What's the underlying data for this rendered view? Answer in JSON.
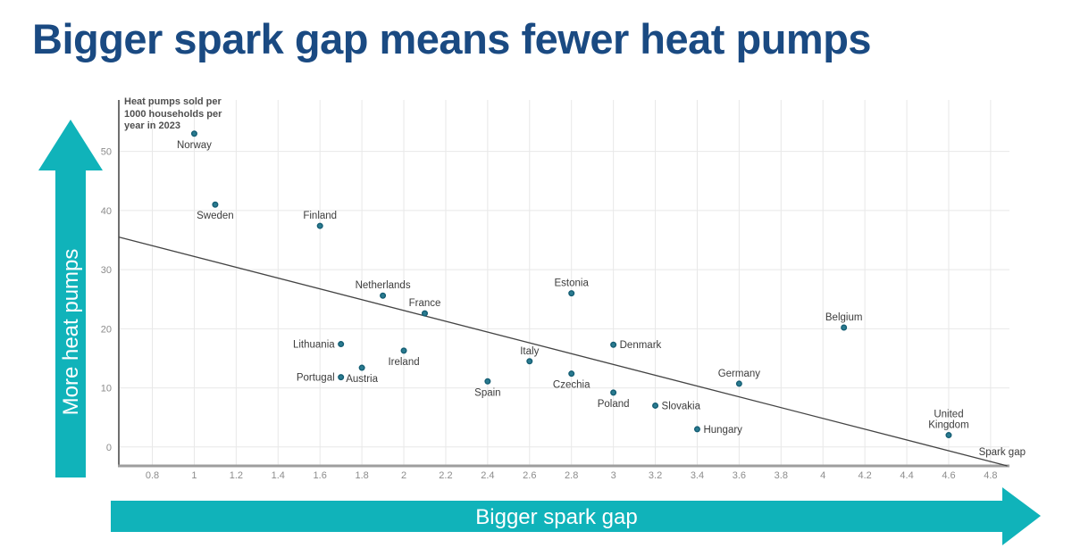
{
  "title": "Bigger spark gap means fewer heat pumps",
  "colors": {
    "title": "#1a4a82",
    "arrow_teal": "#10b3ba",
    "point_fill": "#2a7b90",
    "point_stroke": "#155e74",
    "trend_line": "#444444",
    "grid": "#e8e8e8",
    "y_axis_line": "#6f6f6f",
    "x_axis_line": "#9e9e9e",
    "tick_text": "#8c8c8c",
    "label_text": "#3c3c3c",
    "note_text": "#4f4f4f"
  },
  "arrows": {
    "y_label": "More heat pumps",
    "x_label": "Bigger spark gap"
  },
  "chart_data": {
    "type": "scatter",
    "title": "Bigger spark gap means fewer heat pumps",
    "y_axis_note_lines": [
      "Heat pumps sold per",
      "1000 households per",
      "year in 2023"
    ],
    "y_axis_note": "Heat pumps sold per 1000 households per year in 2023",
    "x_axis_label": "Spark gap",
    "x_range": [
      0.64,
      4.89
    ],
    "y_range": [
      -3.2,
      58.7
    ],
    "grid": true,
    "legend": "none",
    "x_tick_values": [
      0.8,
      1,
      1.2,
      1.4,
      1.6,
      1.8,
      2,
      2.2,
      2.4,
      2.6,
      2.8,
      3,
      3.2,
      3.4,
      3.6,
      3.8,
      4,
      4.2,
      4.4,
      4.6,
      4.8
    ],
    "x_tick_labels": [
      "0.8",
      "1",
      "1.2",
      "1.4",
      "1.6",
      "1.8",
      "2",
      "2.2",
      "2.4",
      "2.6",
      "2.8",
      "3",
      "3.2",
      "3.4",
      "3.6",
      "3.8",
      "4",
      "4.2",
      "4.4",
      "4.6",
      "4.8"
    ],
    "y_ticks": [
      0,
      10,
      20,
      30,
      40,
      50
    ],
    "points": [
      {
        "country": "Norway",
        "x": 1.0,
        "y": 53,
        "label_pos": "below"
      },
      {
        "country": "Sweden",
        "x": 1.1,
        "y": 41,
        "label_pos": "below"
      },
      {
        "country": "Finland",
        "x": 1.6,
        "y": 37.4,
        "label_pos": "above"
      },
      {
        "country": "Netherlands",
        "x": 1.9,
        "y": 25.6,
        "label_pos": "above"
      },
      {
        "country": "France",
        "x": 2.1,
        "y": 22.6,
        "label_pos": "above"
      },
      {
        "country": "Estonia",
        "x": 2.8,
        "y": 26,
        "label_pos": "above"
      },
      {
        "country": "Lithuania",
        "x": 1.7,
        "y": 17.4,
        "label_pos": "left"
      },
      {
        "country": "Denmark",
        "x": 3.0,
        "y": 17.3,
        "label_pos": "right"
      },
      {
        "country": "Ireland",
        "x": 2.0,
        "y": 16.3,
        "label_pos": "below"
      },
      {
        "country": "Italy",
        "x": 2.6,
        "y": 14.5,
        "label_pos": "above"
      },
      {
        "country": "Austria",
        "x": 1.8,
        "y": 13.4,
        "label_pos": "below"
      },
      {
        "country": "Czechia",
        "x": 2.8,
        "y": 12.4,
        "label_pos": "below"
      },
      {
        "country": "Portugal",
        "x": 1.7,
        "y": 11.8,
        "label_pos": "left"
      },
      {
        "country": "Spain",
        "x": 2.4,
        "y": 11.1,
        "label_pos": "below"
      },
      {
        "country": "Germany",
        "x": 3.6,
        "y": 10.7,
        "label_pos": "above"
      },
      {
        "country": "Poland",
        "x": 3.0,
        "y": 9.2,
        "label_pos": "below"
      },
      {
        "country": "Slovakia",
        "x": 3.2,
        "y": 7,
        "label_pos": "right"
      },
      {
        "country": "Hungary",
        "x": 3.4,
        "y": 3,
        "label_pos": "right"
      },
      {
        "country": "Belgium",
        "x": 4.1,
        "y": 20.2,
        "label_pos": "above"
      },
      {
        "country": "United Kingdom",
        "x": 4.6,
        "y": 2,
        "label_pos": "above",
        "label_lines": [
          "United",
          "Kingdom"
        ]
      }
    ],
    "trend_line": {
      "x1": 0.64,
      "y1": 35.5,
      "x2": 4.88,
      "y2": -3.2
    }
  }
}
